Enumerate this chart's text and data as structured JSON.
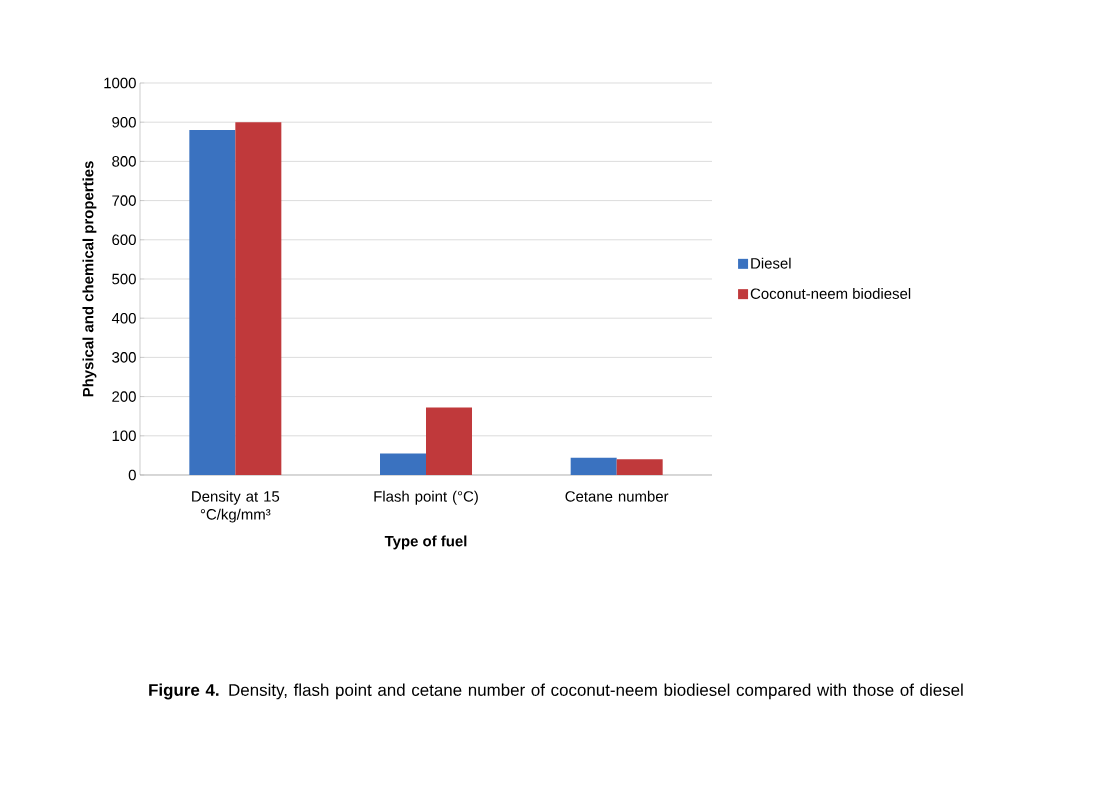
{
  "chart_data": {
    "type": "bar",
    "xlabel": "Type of fuel",
    "ylabel": "Physical and chemical properties",
    "categories": [
      "Density at 15 °C/kg/mm³",
      "Flash point (°C)",
      "Cetane number"
    ],
    "series": [
      {
        "name": "Diesel",
        "color": "#3a72c0",
        "values": [
          880,
          55,
          44
        ]
      },
      {
        "name": "Coconut-neem biodiesel",
        "color": "#c0393b",
        "values": [
          900,
          172,
          40
        ]
      }
    ],
    "ylim": [
      0,
      1000
    ],
    "yticks": [
      0,
      100,
      200,
      300,
      400,
      500,
      600,
      700,
      800,
      900,
      1000
    ],
    "grid": "y",
    "legend": "right",
    "annotations": [
      "**Figure 4.** Density, flash point and cetane number of coconut-neem biodiesel compared with those of diesel"
    ]
  }
}
